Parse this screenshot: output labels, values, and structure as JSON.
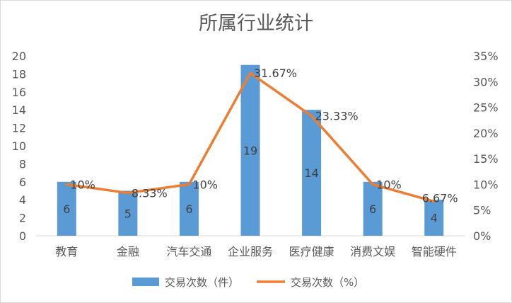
{
  "chart_data": {
    "type": "bar+line",
    "title": "所属行业统计",
    "categories": [
      "教育",
      "金融",
      "汽车交通",
      "企业服务",
      "医疗健康",
      "消费文娱",
      "智能硬件"
    ],
    "series": [
      {
        "name": "交易次数（件）",
        "type": "bar",
        "axis": "left",
        "values": [
          6,
          5,
          6,
          19,
          14,
          6,
          4
        ],
        "labels": [
          "6",
          "5",
          "6",
          "19",
          "14",
          "6",
          "4"
        ],
        "color": "#5b9bd5"
      },
      {
        "name": "交易次数（%）",
        "type": "line",
        "axis": "right",
        "values": [
          10,
          8.33,
          10,
          31.67,
          23.33,
          10,
          6.67
        ],
        "labels": [
          "10%",
          "8.33%",
          "10%",
          "31.67%",
          "23.33%",
          "10%",
          "6.67%"
        ],
        "color": "#ed7d31"
      }
    ],
    "y_left": {
      "min": 0,
      "max": 20,
      "step": 2,
      "ticks": [
        "0",
        "2",
        "4",
        "6",
        "8",
        "10",
        "12",
        "14",
        "16",
        "18",
        "20"
      ]
    },
    "y_right": {
      "min": 0,
      "max": 35,
      "step": 5,
      "ticks": [
        "0%",
        "5%",
        "10%",
        "15%",
        "20%",
        "25%",
        "30%",
        "35%"
      ]
    },
    "grid": false,
    "legend_position": "bottom"
  }
}
